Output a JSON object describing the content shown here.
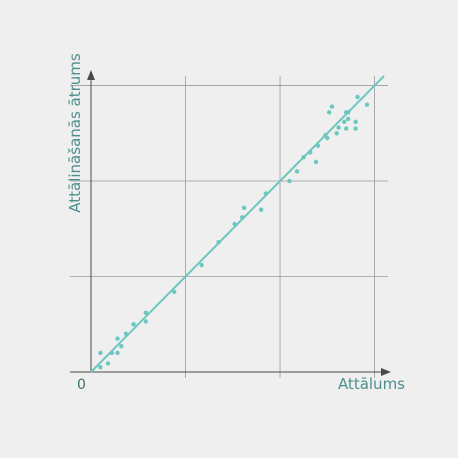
{
  "chart_data": {
    "type": "scatter",
    "title": "",
    "xlabel": "Attālums",
    "ylabel": "Attālināšanās ātrums",
    "origin_label": "0",
    "x_tick_labels": [],
    "y_tick_labels": [],
    "xlim": [
      0,
      3.1
    ],
    "ylim": [
      0,
      3.1
    ],
    "grid": true,
    "colors": {
      "background": "#efefef",
      "grid": "#9a9a9a",
      "axis": "#4a4a4a",
      "points": "#6cc7bf",
      "fit_line": "#6cc7bf",
      "label": "#4d8f8c"
    },
    "series": [
      {
        "values": [
          [
            0.1,
            0.05
          ],
          [
            0.18,
            0.09
          ],
          [
            0.1,
            0.2
          ],
          [
            0.22,
            0.2
          ],
          [
            0.28,
            0.2
          ],
          [
            0.32,
            0.27
          ],
          [
            0.28,
            0.35
          ],
          [
            0.37,
            0.4
          ],
          [
            0.45,
            0.5
          ],
          [
            0.58,
            0.53
          ],
          [
            0.58,
            0.62
          ],
          [
            0.88,
            0.84
          ],
          [
            1.17,
            1.12
          ],
          [
            1.35,
            1.36
          ],
          [
            1.52,
            1.55
          ],
          [
            1.6,
            1.62
          ],
          [
            1.62,
            1.72
          ],
          [
            1.8,
            1.7
          ],
          [
            1.85,
            1.87
          ],
          [
            2.1,
            2.0
          ],
          [
            2.18,
            2.1
          ],
          [
            2.25,
            2.25
          ],
          [
            2.32,
            2.3
          ],
          [
            2.38,
            2.2
          ],
          [
            2.4,
            2.37
          ],
          [
            2.48,
            2.48
          ],
          [
            2.52,
            2.72
          ],
          [
            2.5,
            2.45
          ],
          [
            2.6,
            2.5
          ],
          [
            2.62,
            2.56
          ],
          [
            2.68,
            2.62
          ],
          [
            2.7,
            2.55
          ],
          [
            2.72,
            2.65
          ],
          [
            2.72,
            2.72
          ],
          [
            2.8,
            2.62
          ],
          [
            2.82,
            2.88
          ],
          [
            2.92,
            2.8
          ],
          [
            2.8,
            2.55
          ],
          [
            2.7,
            2.72
          ],
          [
            2.55,
            2.78
          ]
        ]
      }
    ],
    "fit_line": {
      "x": [
        0,
        3.1
      ],
      "y": [
        0,
        3.1
      ]
    }
  }
}
